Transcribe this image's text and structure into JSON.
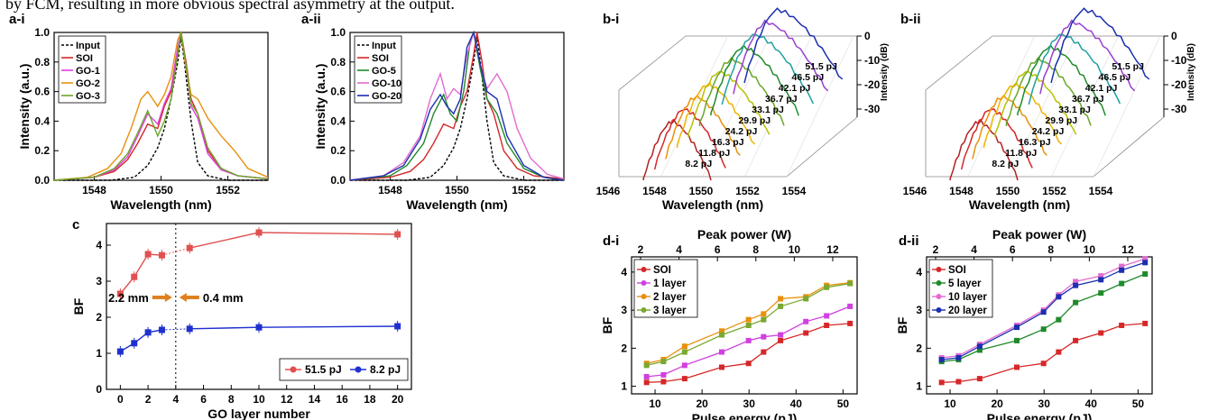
{
  "caption_text": "by FCM, resulting in more obvious spectral asymmetry at the output.",
  "colors": {
    "input": "#000000",
    "soi": "#d62728",
    "go1": "#e040e0",
    "go2": "#e8900c",
    "go3": "#6aa62a",
    "go5": "#1f8a2a",
    "go10": "#e26bd0",
    "go20": "#1c2fb0",
    "e515": "#e05050",
    "e82": "#1f30d0"
  },
  "chart_data": [
    {
      "id": "a-i",
      "panel_label": "a-i",
      "type": "line",
      "xlabel": "Wavelength (nm)",
      "ylabel": "Intensity (a.u.)",
      "xlim": [
        1546.8,
        1553.2
      ],
      "ylim": [
        0,
        1.0
      ],
      "xticks": [
        "1548",
        "1550",
        "1552"
      ],
      "yticks": [
        "0.0",
        "0.2",
        "0.4",
        "0.6",
        "0.8",
        "1.0"
      ],
      "legend": "top-left",
      "series": [
        {
          "name": "Input",
          "color": "#000000",
          "dash": true,
          "x": [
            1546.8,
            1548.5,
            1549.2,
            1549.6,
            1549.9,
            1550.1,
            1550.3,
            1550.5,
            1550.6,
            1550.7,
            1550.9,
            1551.1,
            1551.4,
            1552.0,
            1553.2
          ],
          "y": [
            0,
            0.0,
            0.02,
            0.1,
            0.22,
            0.35,
            0.55,
            0.8,
            0.97,
            0.8,
            0.4,
            0.12,
            0.03,
            0.0,
            0
          ]
        },
        {
          "name": "SOI",
          "color": "#d62728",
          "x": [
            1546.8,
            1548.0,
            1548.6,
            1549.0,
            1549.3,
            1549.6,
            1549.9,
            1550.1,
            1550.3,
            1550.5,
            1550.6,
            1550.75,
            1550.9,
            1551.1,
            1551.4,
            1551.8,
            1552.3,
            1553.2
          ],
          "y": [
            0,
            0.02,
            0.06,
            0.14,
            0.25,
            0.38,
            0.35,
            0.5,
            0.6,
            0.85,
            1.0,
            0.8,
            0.55,
            0.45,
            0.2,
            0.08,
            0.03,
            0.01
          ]
        },
        {
          "name": "GO-1",
          "color": "#e040e0",
          "x": [
            1546.8,
            1548.0,
            1548.6,
            1549.0,
            1549.3,
            1549.6,
            1549.9,
            1550.1,
            1550.3,
            1550.5,
            1550.6,
            1550.75,
            1550.9,
            1551.1,
            1551.4,
            1551.8,
            1552.3,
            1553.2
          ],
          "y": [
            0,
            0.02,
            0.07,
            0.16,
            0.3,
            0.45,
            0.38,
            0.52,
            0.62,
            0.9,
            1.0,
            0.78,
            0.5,
            0.42,
            0.18,
            0.07,
            0.03,
            0.01
          ]
        },
        {
          "name": "GO-2",
          "color": "#e8900c",
          "x": [
            1546.8,
            1547.8,
            1548.4,
            1548.8,
            1549.1,
            1549.4,
            1549.6,
            1549.9,
            1550.1,
            1550.3,
            1550.5,
            1550.6,
            1550.75,
            1550.9,
            1551.1,
            1551.4,
            1551.8,
            1552.2,
            1552.6,
            1553.2
          ],
          "y": [
            0,
            0.02,
            0.08,
            0.18,
            0.35,
            0.55,
            0.6,
            0.5,
            0.58,
            0.7,
            0.95,
            1.0,
            0.75,
            0.58,
            0.55,
            0.42,
            0.3,
            0.2,
            0.08,
            0.02
          ]
        },
        {
          "name": "GO-3",
          "color": "#6aa62a",
          "x": [
            1546.8,
            1548.0,
            1548.6,
            1549.0,
            1549.3,
            1549.6,
            1549.9,
            1550.1,
            1550.3,
            1550.5,
            1550.6,
            1550.75,
            1550.9,
            1551.1,
            1551.4,
            1551.8,
            1552.3,
            1553.2
          ],
          "y": [
            0,
            0.02,
            0.08,
            0.18,
            0.32,
            0.47,
            0.3,
            0.4,
            0.55,
            0.85,
            1.0,
            0.78,
            0.52,
            0.45,
            0.22,
            0.08,
            0.03,
            0.01
          ]
        }
      ]
    },
    {
      "id": "a-ii",
      "panel_label": "a-ii",
      "type": "line",
      "xlabel": "Wavelength (nm)",
      "ylabel": "Intensity (a.u.)",
      "xlim": [
        1546.8,
        1553.2
      ],
      "ylim": [
        0,
        1.0
      ],
      "xticks": [
        "1548",
        "1550",
        "1552"
      ],
      "yticks": [
        "0.0",
        "0.2",
        "0.4",
        "0.6",
        "0.8",
        "1.0"
      ],
      "legend": "top-left",
      "series": [
        {
          "name": "Input",
          "color": "#000000",
          "dash": true,
          "x": [
            1546.8,
            1548.5,
            1549.2,
            1549.6,
            1549.9,
            1550.1,
            1550.3,
            1550.5,
            1550.6,
            1550.7,
            1550.9,
            1551.1,
            1551.4,
            1552.0,
            1553.2
          ],
          "y": [
            0,
            0.0,
            0.02,
            0.1,
            0.22,
            0.35,
            0.55,
            0.8,
            0.97,
            0.8,
            0.4,
            0.12,
            0.03,
            0.0,
            0
          ]
        },
        {
          "name": "SOI",
          "color": "#d62728",
          "x": [
            1546.8,
            1548.0,
            1548.6,
            1549.0,
            1549.3,
            1549.6,
            1549.9,
            1550.1,
            1550.3,
            1550.5,
            1550.6,
            1550.75,
            1550.9,
            1551.1,
            1551.4,
            1551.8,
            1552.3,
            1553.2
          ],
          "y": [
            0,
            0.02,
            0.06,
            0.14,
            0.25,
            0.38,
            0.35,
            0.5,
            0.6,
            0.85,
            1.0,
            0.8,
            0.55,
            0.45,
            0.2,
            0.08,
            0.03,
            0.01
          ]
        },
        {
          "name": "GO-5",
          "color": "#1f8a2a",
          "x": [
            1546.8,
            1548.0,
            1548.5,
            1549.0,
            1549.3,
            1549.6,
            1549.8,
            1550.0,
            1550.2,
            1550.4,
            1550.5,
            1550.7,
            1550.9,
            1551.2,
            1551.5,
            1552.0,
            1552.6,
            1553.2
          ],
          "y": [
            0,
            0.03,
            0.1,
            0.25,
            0.45,
            0.58,
            0.45,
            0.4,
            0.6,
            0.95,
            1.0,
            0.75,
            0.55,
            0.45,
            0.25,
            0.08,
            0.02,
            0.0
          ]
        },
        {
          "name": "GO-10",
          "color": "#e26bd0",
          "x": [
            1546.8,
            1547.8,
            1548.4,
            1548.9,
            1549.2,
            1549.5,
            1549.7,
            1549.9,
            1550.1,
            1550.3,
            1550.5,
            1550.7,
            1550.9,
            1551.2,
            1551.5,
            1551.8,
            1552.2,
            1552.7,
            1553.2
          ],
          "y": [
            0,
            0.03,
            0.12,
            0.3,
            0.55,
            0.72,
            0.55,
            0.62,
            0.58,
            0.85,
            1.0,
            0.78,
            0.62,
            0.72,
            0.6,
            0.35,
            0.15,
            0.04,
            0.01
          ]
        },
        {
          "name": "GO-20",
          "color": "#1c2fb0",
          "x": [
            1546.8,
            1547.8,
            1548.4,
            1548.9,
            1549.2,
            1549.5,
            1549.7,
            1549.9,
            1550.1,
            1550.3,
            1550.5,
            1550.7,
            1550.9,
            1551.2,
            1551.5,
            1552.0,
            1552.6,
            1553.2
          ],
          "y": [
            0,
            0.03,
            0.1,
            0.28,
            0.48,
            0.58,
            0.5,
            0.45,
            0.55,
            0.9,
            1.0,
            0.78,
            0.6,
            0.55,
            0.3,
            0.1,
            0.02,
            0.0
          ]
        }
      ]
    },
    {
      "id": "b-i",
      "panel_label": "b-i",
      "type": "line3d",
      "xlabel": "Wavelength (nm)",
      "zlabel": "Intensity (dB)",
      "xticks": [
        "1546",
        "1548",
        "1550",
        "1552",
        "1554"
      ],
      "zticks": [
        "0",
        "-10",
        "-20",
        "-30"
      ],
      "energies": [
        "8.2 pJ",
        "11.8 pJ",
        "16.3 pJ",
        "24.2 pJ",
        "29.9 pJ",
        "33.1 pJ",
        "36.7 pJ",
        "42.1 pJ",
        "46.5 pJ",
        "51.5 pJ"
      ],
      "colors": [
        "#b22222",
        "#d62728",
        "#e8900c",
        "#f0b400",
        "#b8c000",
        "#6aa62a",
        "#1f8a2a",
        "#20a0a0",
        "#9a40d0",
        "#1c2fb0"
      ]
    },
    {
      "id": "b-ii",
      "panel_label": "b-ii",
      "type": "line3d",
      "xlabel": "Wavelength (nm)",
      "zlabel": "Intensity (dB)",
      "xticks": [
        "1546",
        "1548",
        "1550",
        "1552",
        "1554"
      ],
      "zticks": [
        "0",
        "-10",
        "-20",
        "-30"
      ],
      "energies": [
        "8.2 pJ",
        "11.8 pJ",
        "16.3 pJ",
        "24.2 pJ",
        "29.9 pJ",
        "33.1 pJ",
        "36.7 pJ",
        "42.1 pJ",
        "46.5 pJ",
        "51.5 pJ"
      ],
      "colors": [
        "#b22222",
        "#d62728",
        "#e8900c",
        "#f0b400",
        "#b8c000",
        "#6aa62a",
        "#1f8a2a",
        "#20a0a0",
        "#9a40d0",
        "#1c2fb0"
      ]
    },
    {
      "id": "c",
      "panel_label": "c",
      "type": "line",
      "xlabel": "GO layer number",
      "ylabel": "BF",
      "xlim": [
        -1,
        21
      ],
      "ylim": [
        0,
        4.6
      ],
      "xticks": [
        "0",
        "2",
        "4",
        "6",
        "8",
        "10",
        "12",
        "14",
        "16",
        "18",
        "20"
      ],
      "yticks": [
        "0",
        "1",
        "2",
        "3",
        "4"
      ],
      "legend": "bottom-right",
      "annotations": {
        "left": "2.2 mm",
        "right": "0.4 mm",
        "divider_x": 4
      },
      "series": [
        {
          "name": "51.5 pJ",
          "color": "#e05050",
          "x": [
            0,
            1,
            2,
            3,
            5,
            10,
            20
          ],
          "y": [
            2.65,
            3.12,
            3.75,
            3.72,
            3.92,
            4.35,
            4.3
          ]
        },
        {
          "name": "8.2 pJ",
          "color": "#1f30d0",
          "x": [
            0,
            1,
            2,
            3,
            5,
            10,
            20
          ],
          "y": [
            1.05,
            1.28,
            1.58,
            1.65,
            1.68,
            1.72,
            1.75
          ]
        }
      ]
    },
    {
      "id": "d-i",
      "panel_label": "d-i",
      "type": "line",
      "xlabel": "Pulse energy (pJ)",
      "ylabel": "BF",
      "x2label": "Peak power (W)",
      "xlim": [
        5,
        53
      ],
      "ylim": [
        0.8,
        4.4
      ],
      "xticks": [
        "10",
        "20",
        "30",
        "40",
        "50"
      ],
      "yticks": [
        "1",
        "2",
        "3",
        "4"
      ],
      "x2ticks": [
        "2",
        "4",
        "6",
        "8",
        "10",
        "12"
      ],
      "legend": "top-left",
      "x": [
        8.2,
        11.8,
        16.3,
        24.2,
        29.9,
        33.1,
        36.7,
        42.1,
        46.5,
        51.5
      ],
      "series": [
        {
          "name": "SOI",
          "color": "#d62728",
          "y": [
            1.1,
            1.12,
            1.2,
            1.5,
            1.6,
            1.9,
            2.2,
            2.4,
            2.6,
            2.65
          ]
        },
        {
          "name": "1 layer",
          "color": "#d040e0",
          "y": [
            1.25,
            1.3,
            1.55,
            1.9,
            2.2,
            2.3,
            2.35,
            2.7,
            2.85,
            3.1
          ]
        },
        {
          "name": "2 layer",
          "color": "#e8900c",
          "y": [
            1.6,
            1.7,
            2.05,
            2.45,
            2.75,
            2.9,
            3.3,
            3.35,
            3.65,
            3.72
          ]
        },
        {
          "name": "3 layer",
          "color": "#7aa830",
          "y": [
            1.55,
            1.65,
            1.9,
            2.35,
            2.6,
            2.75,
            3.1,
            3.3,
            3.6,
            3.7
          ]
        }
      ]
    },
    {
      "id": "d-ii",
      "panel_label": "d-ii",
      "type": "line",
      "xlabel": "Pulse energy (pJ)",
      "ylabel": "BF",
      "x2label": "Peak power (W)",
      "xlim": [
        5,
        53
      ],
      "ylim": [
        0.8,
        4.4
      ],
      "xticks": [
        "10",
        "20",
        "30",
        "40",
        "50"
      ],
      "yticks": [
        "1",
        "2",
        "3",
        "4"
      ],
      "x2ticks": [
        "2",
        "4",
        "6",
        "8",
        "10",
        "12"
      ],
      "legend": "top-left",
      "x": [
        8.2,
        11.8,
        16.3,
        24.2,
        29.9,
        33.1,
        36.7,
        42.1,
        46.5,
        51.5
      ],
      "series": [
        {
          "name": "SOI",
          "color": "#d62728",
          "y": [
            1.1,
            1.12,
            1.2,
            1.5,
            1.6,
            1.9,
            2.2,
            2.4,
            2.6,
            2.65
          ]
        },
        {
          "name": "5 layer",
          "color": "#1f8a2a",
          "y": [
            1.65,
            1.7,
            1.95,
            2.2,
            2.5,
            2.75,
            3.2,
            3.45,
            3.7,
            3.95
          ]
        },
        {
          "name": "10 layer",
          "color": "#e26bd0",
          "y": [
            1.75,
            1.8,
            2.1,
            2.6,
            3.0,
            3.4,
            3.75,
            3.9,
            4.15,
            4.35
          ]
        },
        {
          "name": "20 layer",
          "color": "#1c2fb0",
          "y": [
            1.7,
            1.75,
            2.05,
            2.55,
            2.95,
            3.35,
            3.65,
            3.8,
            4.05,
            4.25
          ]
        }
      ]
    }
  ]
}
